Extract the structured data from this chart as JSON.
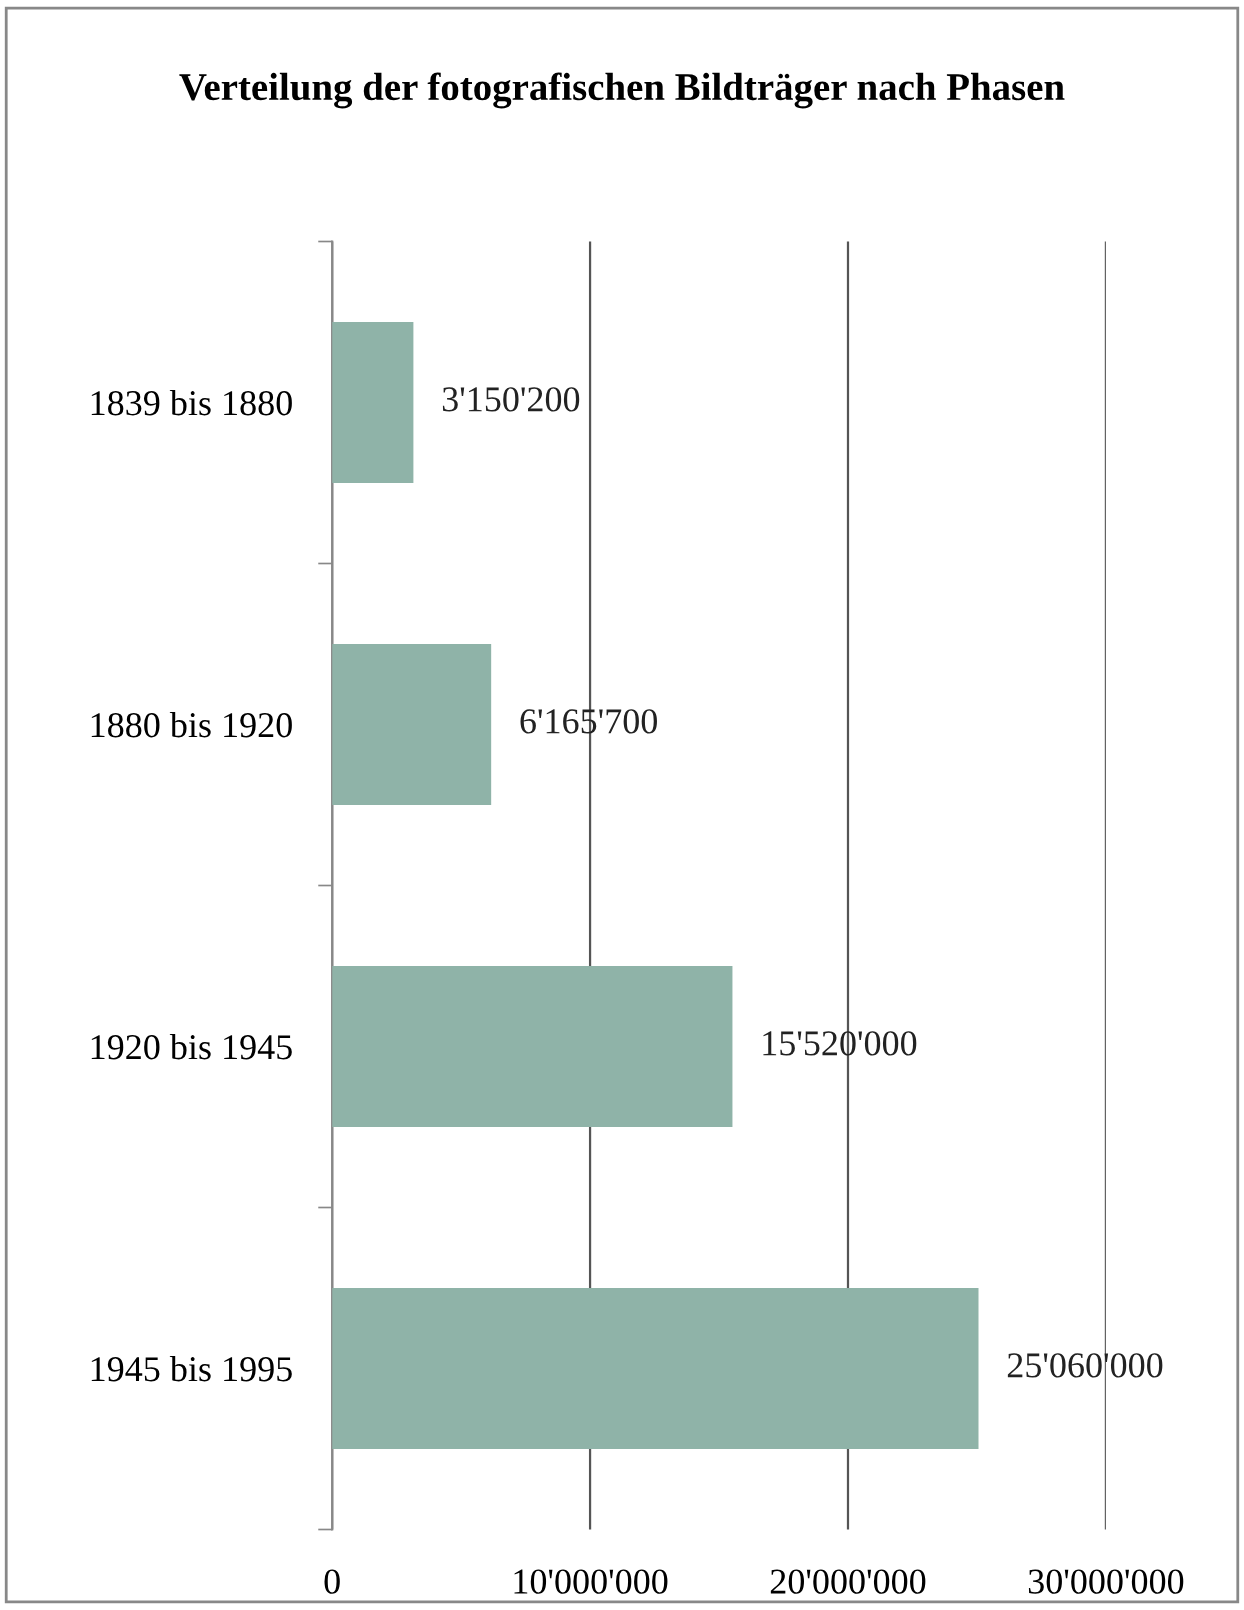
{
  "chart_data": {
    "type": "bar",
    "orientation": "horizontal",
    "title": "Verteilung der fotografischen Bildträger nach Phasen",
    "categories": [
      "1839 bis 1880",
      "1880 bis 1920",
      "1920 bis 1945",
      "1945 bis 1995"
    ],
    "values": [
      3150200,
      6165700,
      15520000,
      25060000
    ],
    "value_labels": [
      "3'150'200",
      "6'165'700",
      "15'520'000",
      "25'060'000"
    ],
    "color": "#8fb3a8",
    "xlim": [
      0,
      30000000
    ],
    "xticks": [
      0,
      {
        "value": 10000000,
        "label": "10'000'000"
      },
      {
        "value": 20000000,
        "label": "20'000'000"
      },
      {
        "value": 30000000,
        "label": "30'000'000"
      }
    ],
    "grid": "x"
  }
}
